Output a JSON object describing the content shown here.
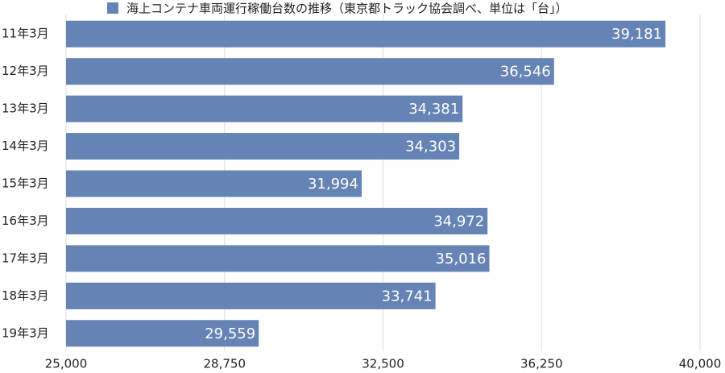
{
  "chart_data": {
    "type": "bar",
    "orientation": "horizontal",
    "categories": [
      "11年3月",
      "12年3月",
      "13年3月",
      "14年3月",
      "15年3月",
      "16年3月",
      "17年3月",
      "18年3月",
      "19年3月"
    ],
    "series": [
      {
        "name": "海上コンテナ車両運行稼働台数の推移（東京都トラック協会調べ、単位は「台」）",
        "color": "#6683b5",
        "values": [
          39181,
          36546,
          34381,
          34303,
          31994,
          34972,
          35016,
          33741,
          29559
        ],
        "value_labels": [
          "39,181",
          "36,546",
          "34,381",
          "34,303",
          "31,994",
          "34,972",
          "35,016",
          "33,741",
          "29,559"
        ]
      }
    ],
    "xlim": [
      25000,
      40000
    ],
    "xticks": [
      {
        "value": 25000,
        "label": "25,000"
      },
      {
        "value": 28750,
        "label": "28,750"
      },
      {
        "value": 32500,
        "label": "32,500"
      },
      {
        "value": 36250,
        "label": "36,250"
      },
      {
        "value": 40000,
        "label": "40,000"
      }
    ],
    "grid": true,
    "legend": "top"
  }
}
